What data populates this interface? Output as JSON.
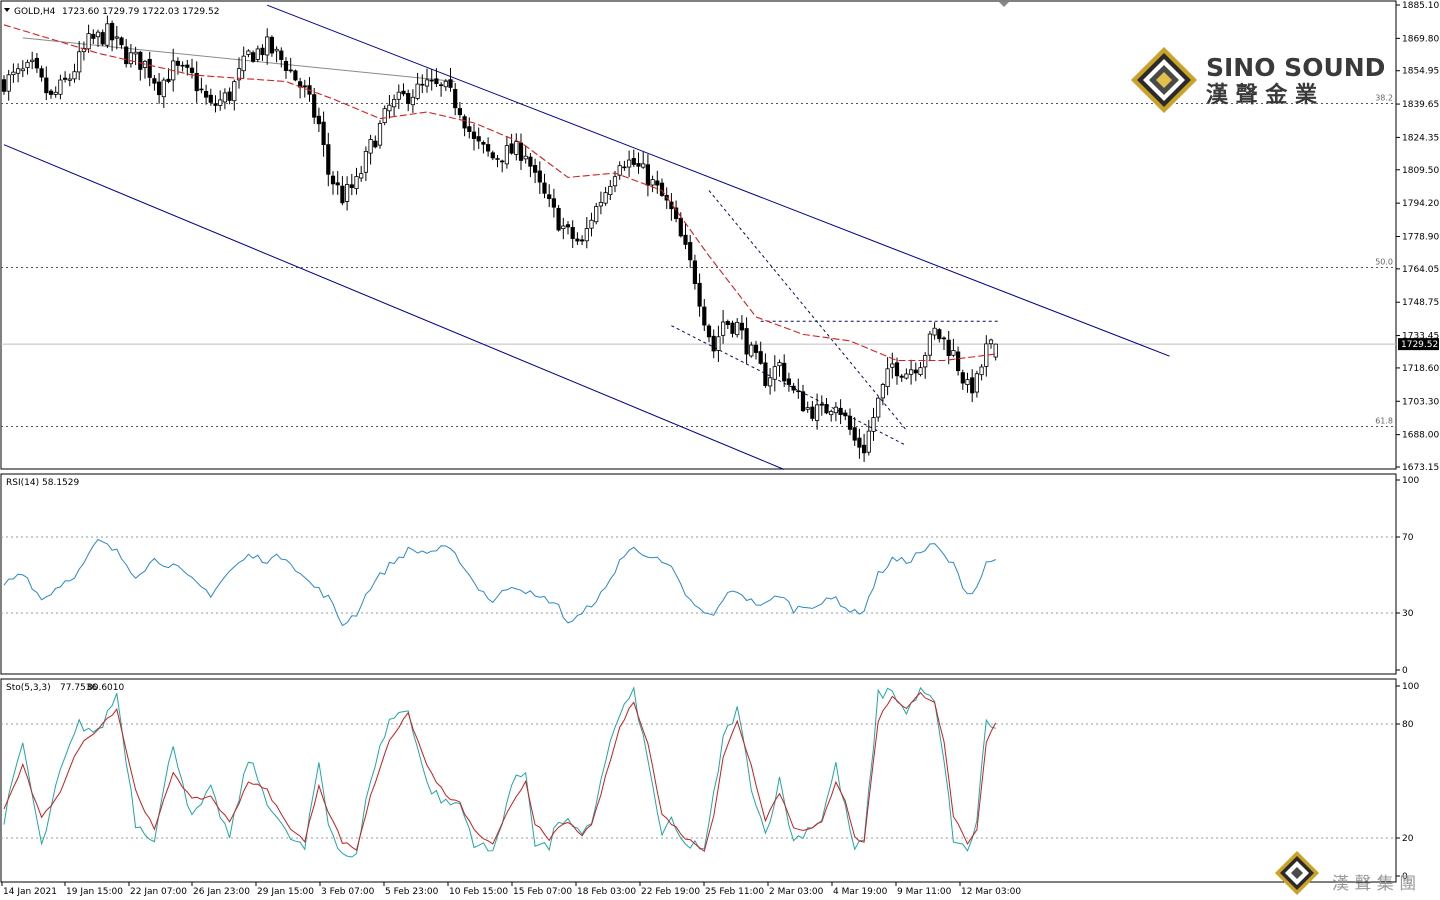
{
  "header": {
    "symbol": "GOLD,H4",
    "ohlc": "1723.60 1729.79 1722.03 1729.52"
  },
  "brand": {
    "name_en": "SINO SOUND",
    "name_cn": "漢 聲 金 業",
    "watermark_cn": "漢 聲 集 團"
  },
  "colors": {
    "bull_candle": "#000000",
    "bear_candle": "#000000",
    "ma": "#d42020",
    "channel": "#00008b",
    "rsi": "#2a88c8",
    "sto_main": "#1fa6a6",
    "sto_signal": "#cc1c1c",
    "fib": "#555555",
    "logo_gold": "#c9a227"
  },
  "chart_data": [
    {
      "type": "candlestick",
      "symbol": "GOLD",
      "timeframe": "H4",
      "last_price": "1729.52",
      "y_ticks": [
        "1885.10",
        "1869.80",
        "1854.95",
        "1839.65",
        "1824.35",
        "1809.50",
        "1794.20",
        "1778.90",
        "1764.05",
        "1748.75",
        "1733.45",
        "1718.60",
        "1703.30",
        "1688.00",
        "1673.15"
      ],
      "ylim": [
        1670.0,
        1886.0
      ],
      "x_tick_labels": [
        "14 Jan 2021",
        "19 Jan 15:00",
        "22 Jan 07:00",
        "26 Jan 23:00",
        "29 Jan 15:00",
        "3 Feb 07:00",
        "5 Feb 23:00",
        "10 Feb 15:00",
        "15 Feb 07:00",
        "18 Feb 03:00",
        "22 Feb 19:00",
        "25 Feb 11:00",
        "2 Mar 03:00",
        "4 Mar 19:00",
        "9 Mar 11:00",
        "12 Mar 03:00"
      ],
      "fib_levels": [
        {
          "label": "38.2",
          "value": 1840.0
        },
        {
          "label": "50.0",
          "value": 1764.7
        },
        {
          "label": "61.8",
          "value": 1691.9
        }
      ],
      "price_path": [
        [
          0,
          1850
        ],
        [
          6,
          1856
        ],
        [
          10,
          1842
        ],
        [
          14,
          1852
        ],
        [
          18,
          1868
        ],
        [
          22,
          1872
        ],
        [
          26,
          1862
        ],
        [
          30,
          1858
        ],
        [
          33,
          1848
        ],
        [
          36,
          1856
        ],
        [
          40,
          1852
        ],
        [
          44,
          1838
        ],
        [
          48,
          1844
        ],
        [
          52,
          1862
        ],
        [
          56,
          1866
        ],
        [
          60,
          1858
        ],
        [
          64,
          1845
        ],
        [
          67,
          1830
        ],
        [
          69,
          1808
        ],
        [
          72,
          1797
        ],
        [
          75,
          1803
        ],
        [
          78,
          1820
        ],
        [
          82,
          1838
        ],
        [
          86,
          1844
        ],
        [
          90,
          1848
        ],
        [
          94,
          1846
        ],
        [
          97,
          1838
        ],
        [
          100,
          1822
        ],
        [
          104,
          1815
        ],
        [
          108,
          1818
        ],
        [
          111,
          1818
        ],
        [
          113,
          1805
        ],
        [
          116,
          1793
        ],
        [
          118,
          1786
        ],
        [
          120,
          1780
        ],
        [
          123,
          1775
        ],
        [
          125,
          1788
        ],
        [
          128,
          1800
        ],
        [
          131,
          1815
        ],
        [
          134,
          1812
        ],
        [
          137,
          1806
        ],
        [
          140,
          1797
        ],
        [
          142,
          1790
        ],
        [
          145,
          1772
        ],
        [
          147,
          1760
        ],
        [
          149,
          1742
        ],
        [
          151,
          1727
        ],
        [
          153,
          1740
        ],
        [
          156,
          1738
        ],
        [
          159,
          1725
        ],
        [
          162,
          1714
        ],
        [
          165,
          1720
        ],
        [
          168,
          1707
        ],
        [
          171,
          1700
        ],
        [
          174,
          1698
        ],
        [
          177,
          1704
        ],
        [
          179,
          1695
        ],
        [
          181,
          1685
        ],
        [
          183,
          1682
        ],
        [
          186,
          1703
        ],
        [
          189,
          1720
        ],
        [
          192,
          1717
        ],
        [
          195,
          1722
        ],
        [
          198,
          1735
        ],
        [
          200,
          1731
        ],
        [
          202,
          1725
        ],
        [
          205,
          1709
        ],
        [
          207,
          1712
        ],
        [
          209,
          1727
        ],
        [
          211,
          1729.52
        ]
      ],
      "ma_path": [
        [
          0,
          1876
        ],
        [
          20,
          1863
        ],
        [
          40,
          1853
        ],
        [
          60,
          1850
        ],
        [
          70,
          1842
        ],
        [
          80,
          1833
        ],
        [
          90,
          1836
        ],
        [
          100,
          1831
        ],
        [
          110,
          1822
        ],
        [
          120,
          1806
        ],
        [
          130,
          1808
        ],
        [
          140,
          1800
        ],
        [
          150,
          1770
        ],
        [
          160,
          1742
        ],
        [
          170,
          1734
        ],
        [
          180,
          1731
        ],
        [
          190,
          1722
        ],
        [
          200,
          1722
        ],
        [
          211,
          1725
        ]
      ],
      "channel_lines": [
        {
          "from": [
            56,
            1885
          ],
          "to": [
            248,
            1724
          ]
        },
        {
          "from": [
            0,
            1821
          ],
          "to": [
            166,
            1672
          ]
        }
      ],
      "trend_lines": [
        {
          "style": "solid-gray",
          "from": [
            4,
            1870
          ],
          "to": [
            96,
            1850
          ]
        },
        {
          "style": "dashed",
          "from": [
            150,
            1800
          ],
          "to": [
            192,
            1690
          ]
        },
        {
          "style": "dashed",
          "from": [
            142,
            1738
          ],
          "to": [
            192,
            1683
          ]
        },
        {
          "style": "dashed",
          "from": [
            161,
            1740
          ],
          "to": [
            212,
            1740
          ]
        }
      ]
    },
    {
      "type": "line",
      "indicator": "RSI(14)",
      "current": "58.1529",
      "y_ticks": [
        "100",
        "70",
        "30",
        "0"
      ],
      "levels": [
        70,
        30
      ],
      "ylim": [
        0,
        100
      ],
      "values": [
        [
          0,
          45
        ],
        [
          4,
          52
        ],
        [
          8,
          37
        ],
        [
          12,
          45
        ],
        [
          16,
          52
        ],
        [
          20,
          68
        ],
        [
          24,
          62
        ],
        [
          28,
          50
        ],
        [
          32,
          58
        ],
        [
          36,
          55
        ],
        [
          40,
          47
        ],
        [
          44,
          40
        ],
        [
          48,
          52
        ],
        [
          52,
          60
        ],
        [
          56,
          58
        ],
        [
          60,
          60
        ],
        [
          64,
          48
        ],
        [
          67,
          42
        ],
        [
          69,
          38
        ],
        [
          72,
          24
        ],
        [
          75,
          30
        ],
        [
          78,
          44
        ],
        [
          82,
          55
        ],
        [
          86,
          63
        ],
        [
          90,
          62
        ],
        [
          94,
          64
        ],
        [
          97,
          58
        ],
        [
          100,
          46
        ],
        [
          104,
          36
        ],
        [
          108,
          45
        ],
        [
          111,
          42
        ],
        [
          113,
          38
        ],
        [
          116,
          37
        ],
        [
          118,
          33
        ],
        [
          120,
          25
        ],
        [
          123,
          29
        ],
        [
          125,
          35
        ],
        [
          128,
          42
        ],
        [
          131,
          58
        ],
        [
          134,
          64
        ],
        [
          137,
          61
        ],
        [
          140,
          56
        ],
        [
          142,
          53
        ],
        [
          145,
          40
        ],
        [
          147,
          33
        ],
        [
          149,
          30
        ],
        [
          151,
          28
        ],
        [
          153,
          38
        ],
        [
          156,
          42
        ],
        [
          159,
          36
        ],
        [
          162,
          34
        ],
        [
          165,
          40
        ],
        [
          168,
          32
        ],
        [
          171,
          34
        ],
        [
          174,
          35
        ],
        [
          177,
          38
        ],
        [
          179,
          33
        ],
        [
          181,
          30
        ],
        [
          183,
          32
        ],
        [
          186,
          50
        ],
        [
          189,
          58
        ],
        [
          192,
          57
        ],
        [
          195,
          62
        ],
        [
          198,
          66
        ],
        [
          200,
          60
        ],
        [
          202,
          55
        ],
        [
          205,
          40
        ],
        [
          207,
          44
        ],
        [
          209,
          56
        ],
        [
          211,
          58.15
        ]
      ]
    },
    {
      "type": "line",
      "indicator": "Sto(5,3,3)",
      "main_value": "77.7536",
      "signal_value": "80.6010",
      "y_ticks": [
        "100",
        "80",
        "20",
        "0"
      ],
      "levels": [
        80,
        20
      ],
      "ylim": [
        0,
        100
      ],
      "main": [
        [
          0,
          30
        ],
        [
          4,
          70
        ],
        [
          8,
          15
        ],
        [
          12,
          55
        ],
        [
          16,
          80
        ],
        [
          20,
          75
        ],
        [
          24,
          96
        ],
        [
          28,
          28
        ],
        [
          32,
          20
        ],
        [
          36,
          70
        ],
        [
          40,
          30
        ],
        [
          44,
          45
        ],
        [
          48,
          20
        ],
        [
          52,
          62
        ],
        [
          56,
          40
        ],
        [
          60,
          22
        ],
        [
          64,
          14
        ],
        [
          67,
          60
        ],
        [
          69,
          28
        ],
        [
          72,
          12
        ],
        [
          75,
          10
        ],
        [
          78,
          52
        ],
        [
          82,
          82
        ],
        [
          86,
          88
        ],
        [
          90,
          48
        ],
        [
          94,
          38
        ],
        [
          97,
          38
        ],
        [
          100,
          18
        ],
        [
          104,
          12
        ],
        [
          108,
          48
        ],
        [
          111,
          55
        ],
        [
          113,
          18
        ],
        [
          116,
          15
        ],
        [
          118,
          30
        ],
        [
          120,
          28
        ],
        [
          123,
          20
        ],
        [
          125,
          28
        ],
        [
          128,
          62
        ],
        [
          131,
          85
        ],
        [
          134,
          97
        ],
        [
          137,
          60
        ],
        [
          140,
          22
        ],
        [
          142,
          28
        ],
        [
          145,
          15
        ],
        [
          147,
          18
        ],
        [
          149,
          12
        ],
        [
          151,
          42
        ],
        [
          153,
          72
        ],
        [
          156,
          88
        ],
        [
          159,
          48
        ],
        [
          162,
          22
        ],
        [
          165,
          50
        ],
        [
          168,
          18
        ],
        [
          171,
          25
        ],
        [
          174,
          30
        ],
        [
          177,
          58
        ],
        [
          179,
          35
        ],
        [
          181,
          14
        ],
        [
          183,
          18
        ],
        [
          186,
          95
        ],
        [
          189,
          98
        ],
        [
          192,
          85
        ],
        [
          195,
          100
        ],
        [
          198,
          90
        ],
        [
          200,
          60
        ],
        [
          202,
          20
        ],
        [
          205,
          12
        ],
        [
          207,
          30
        ],
        [
          209,
          82
        ],
        [
          211,
          77.75
        ]
      ],
      "signal": [
        [
          0,
          35
        ],
        [
          4,
          58
        ],
        [
          8,
          30
        ],
        [
          12,
          45
        ],
        [
          16,
          68
        ],
        [
          20,
          78
        ],
        [
          24,
          88
        ],
        [
          28,
          45
        ],
        [
          32,
          24
        ],
        [
          36,
          55
        ],
        [
          40,
          40
        ],
        [
          44,
          42
        ],
        [
          48,
          28
        ],
        [
          52,
          50
        ],
        [
          56,
          45
        ],
        [
          60,
          28
        ],
        [
          64,
          18
        ],
        [
          67,
          48
        ],
        [
          69,
          34
        ],
        [
          72,
          18
        ],
        [
          75,
          14
        ],
        [
          78,
          42
        ],
        [
          82,
          72
        ],
        [
          86,
          85
        ],
        [
          90,
          58
        ],
        [
          94,
          42
        ],
        [
          97,
          38
        ],
        [
          100,
          24
        ],
        [
          104,
          16
        ],
        [
          108,
          38
        ],
        [
          111,
          50
        ],
        [
          113,
          28
        ],
        [
          116,
          18
        ],
        [
          118,
          26
        ],
        [
          120,
          28
        ],
        [
          123,
          22
        ],
        [
          125,
          26
        ],
        [
          128,
          52
        ],
        [
          131,
          78
        ],
        [
          134,
          92
        ],
        [
          137,
          70
        ],
        [
          140,
          32
        ],
        [
          142,
          28
        ],
        [
          145,
          20
        ],
        [
          147,
          17
        ],
        [
          149,
          14
        ],
        [
          151,
          32
        ],
        [
          153,
          62
        ],
        [
          156,
          82
        ],
        [
          159,
          58
        ],
        [
          162,
          30
        ],
        [
          165,
          44
        ],
        [
          168,
          26
        ],
        [
          171,
          24
        ],
        [
          174,
          28
        ],
        [
          177,
          50
        ],
        [
          179,
          40
        ],
        [
          181,
          20
        ],
        [
          183,
          18
        ],
        [
          186,
          82
        ],
        [
          189,
          95
        ],
        [
          192,
          88
        ],
        [
          195,
          96
        ],
        [
          198,
          92
        ],
        [
          200,
          70
        ],
        [
          202,
          32
        ],
        [
          205,
          16
        ],
        [
          207,
          24
        ],
        [
          209,
          70
        ],
        [
          211,
          80.6
        ]
      ]
    }
  ]
}
